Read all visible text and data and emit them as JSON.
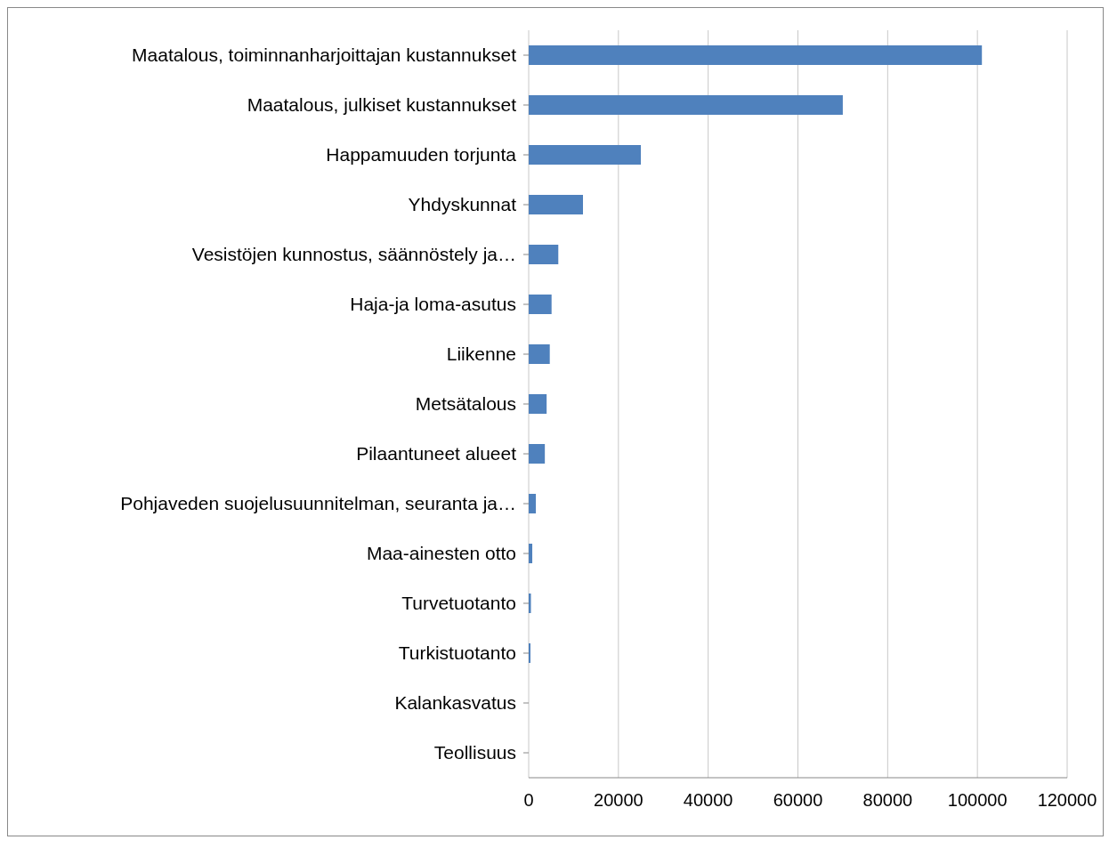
{
  "chart_data": {
    "type": "bar",
    "orientation": "horizontal",
    "categories": [
      "Maatalous, toiminnanharjoittajan kustannukset",
      "Maatalous, julkiset kustannukset",
      "Happamuuden torjunta",
      "Yhdyskunnat",
      "Vesistöjen kunnostus, säännöstely ja…",
      "Haja-ja loma-asutus",
      "Liikenne",
      "Metsätalous",
      "Pilaantuneet alueet",
      "Pohjaveden suojelusuunnitelman, seuranta ja…",
      "Maa-ainesten otto",
      "Turvetuotanto",
      "Turkistuotanto",
      "Kalankasvatus",
      "Teollisuus"
    ],
    "values": [
      101000,
      70000,
      25000,
      12100,
      6600,
      5100,
      4700,
      4000,
      3600,
      1600,
      800,
      500,
      400,
      0,
      0
    ],
    "color": "#4f81bd",
    "xlim": [
      0,
      120000
    ],
    "xticks": [
      0,
      20000,
      40000,
      60000,
      80000,
      100000,
      120000
    ],
    "grid": "x"
  }
}
